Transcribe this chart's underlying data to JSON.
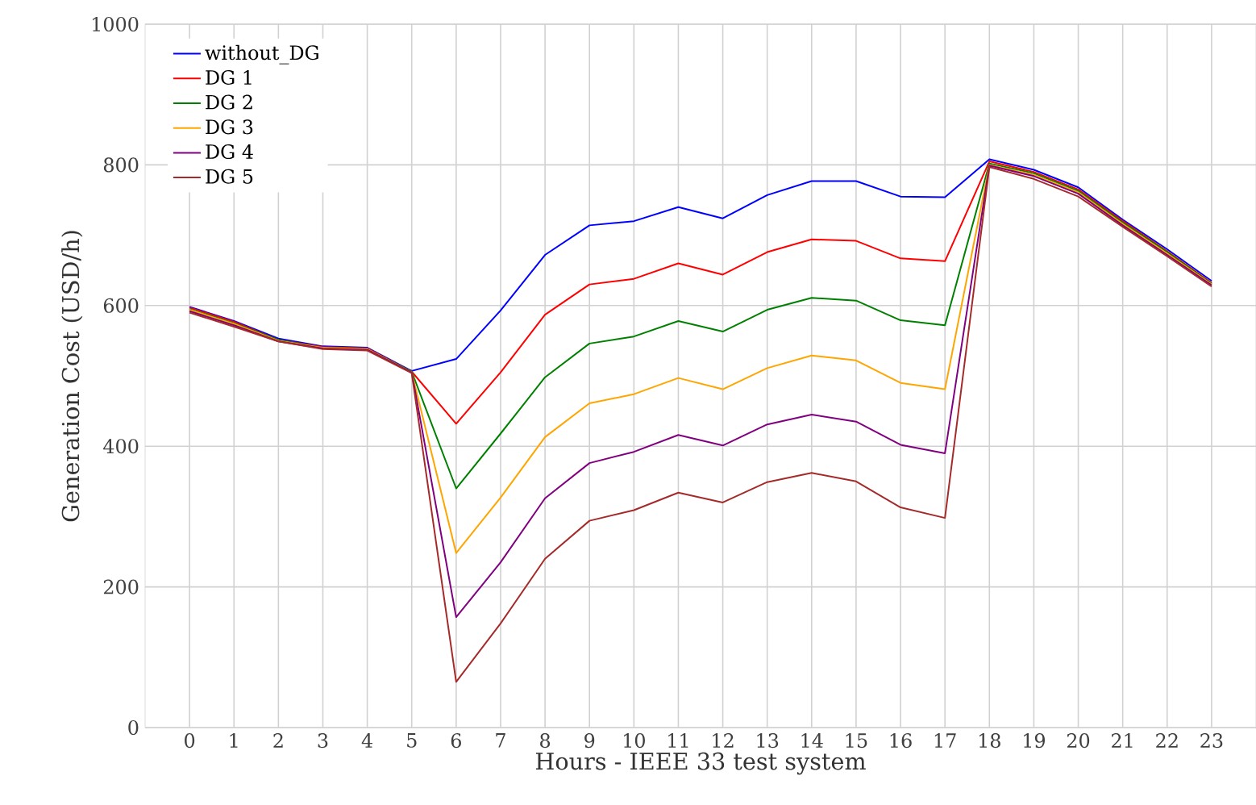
{
  "chart_data": {
    "type": "line",
    "xlabel": "Hours  - IEEE 33 test system",
    "ylabel": "Generation Cost (USD/h)",
    "x": [
      0,
      1,
      2,
      3,
      4,
      5,
      6,
      7,
      8,
      9,
      10,
      11,
      12,
      13,
      14,
      15,
      16,
      17,
      18,
      19,
      20,
      21,
      22,
      23
    ],
    "xlim": [
      -1,
      24
    ],
    "xticks": [
      0,
      1,
      2,
      3,
      4,
      5,
      6,
      7,
      8,
      9,
      10,
      11,
      12,
      13,
      14,
      15,
      16,
      17,
      18,
      19,
      20,
      21,
      22,
      23
    ],
    "ylim": [
      0,
      1000
    ],
    "yticks": [
      0,
      200,
      400,
      600,
      800,
      1000
    ],
    "grid": true,
    "legend": "top left",
    "marker": "none",
    "line_style": "solid",
    "series": [
      {
        "name": "without_DG",
        "color": "#0000ff",
        "values": [
          598,
          578,
          553,
          542,
          540,
          507,
          524,
          593,
          672,
          714,
          720,
          740,
          724,
          757,
          777,
          777,
          755,
          754,
          808,
          793,
          768,
          722,
          680,
          635
        ]
      },
      {
        "name": "DG 1",
        "color": "#ff0000",
        "values": [
          597,
          577,
          551,
          541,
          539,
          506,
          432,
          505,
          587,
          630,
          638,
          660,
          644,
          676,
          694,
          692,
          667,
          663,
          805,
          790,
          765,
          720,
          677,
          632
        ]
      },
      {
        "name": "DG 2",
        "color": "#008000",
        "values": [
          595,
          575,
          551,
          540,
          538,
          506,
          340,
          418,
          498,
          546,
          556,
          578,
          563,
          594,
          611,
          607,
          579,
          572,
          802,
          788,
          763,
          718,
          676,
          631
        ]
      },
      {
        "name": "DG 3",
        "color": "#ffa500",
        "values": [
          594,
          574,
          550,
          540,
          538,
          505,
          248,
          327,
          413,
          461,
          474,
          497,
          481,
          511,
          529,
          522,
          490,
          481,
          800,
          786,
          761,
          716,
          674,
          630
        ]
      },
      {
        "name": "DG 4",
        "color": "#800080",
        "values": [
          592,
          572,
          549,
          539,
          537,
          505,
          157,
          235,
          326,
          376,
          392,
          416,
          401,
          431,
          445,
          435,
          402,
          390,
          799,
          784,
          759,
          714,
          672,
          629
        ]
      },
      {
        "name": "DG 5",
        "color": "#a52a2a",
        "values": [
          590,
          570,
          549,
          538,
          536,
          504,
          65,
          148,
          240,
          294,
          309,
          334,
          320,
          349,
          362,
          350,
          313,
          298,
          797,
          780,
          755,
          712,
          670,
          627
        ]
      }
    ]
  }
}
